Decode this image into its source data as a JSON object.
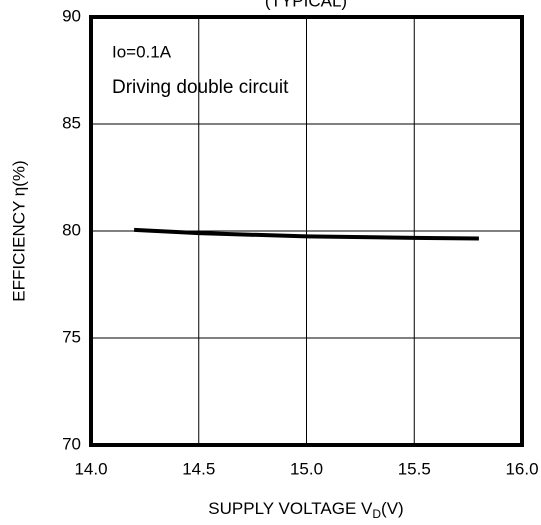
{
  "chart_data": {
    "type": "line",
    "title": "(TYPICAL)",
    "xlabel": "SUPPLY VOLTAGE V",
    "xlabel_sub": "D",
    "xlabel_suffix": "(V)",
    "ylabel": "EFFICIENCY η(%)",
    "annotations": [
      "Io=0.1A",
      "Driving double circuit"
    ],
    "x": [
      14.2,
      14.5,
      15.0,
      15.5,
      15.8
    ],
    "values": [
      80.05,
      79.9,
      79.75,
      79.68,
      79.65
    ],
    "color": "#000000",
    "xlim": [
      14.0,
      16.0
    ],
    "xticks": [
      {
        "value": 14.0,
        "label": "14.0"
      },
      {
        "value": 14.5,
        "label": "14.5"
      },
      {
        "value": 15.0,
        "label": "15.0"
      },
      {
        "value": 15.5,
        "label": "15.5"
      },
      {
        "value": 16.0,
        "label": "16.0"
      }
    ],
    "ylim": [
      70,
      90
    ],
    "yticks": [
      70,
      75,
      80,
      85,
      90
    ],
    "grid": true
  }
}
